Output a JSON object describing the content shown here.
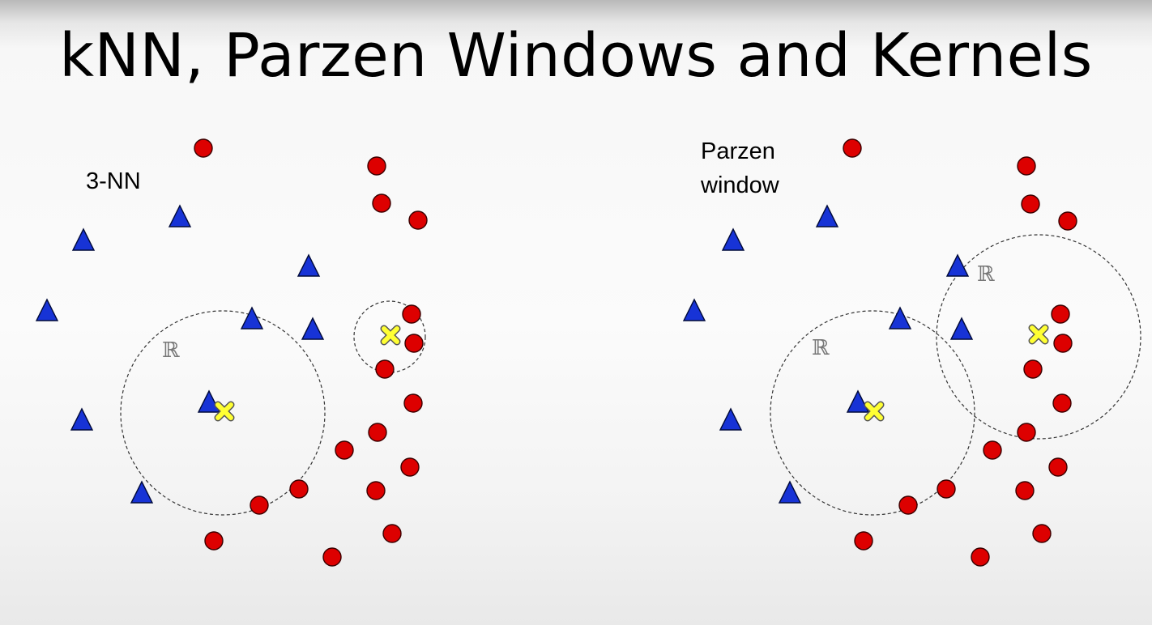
{
  "title": "kNN, Parzen Windows and Kernels",
  "panels": [
    {
      "id": "knn",
      "label": "3-NN",
      "region_symbol": "ℝ",
      "colors": {
        "circle": "#dd0000",
        "triangle": "#1733d6",
        "query": "#ffff33"
      }
    },
    {
      "id": "parzen",
      "label": "Parzen\nwindow",
      "region_symbol": "ℝ",
      "colors": {
        "circle": "#dd0000",
        "triangle": "#1733d6",
        "query": "#ffff33"
      }
    }
  ],
  "legend_semantics": {
    "red_circle": "class-circle",
    "blue_triangle": "class-triangle",
    "yellow_x": "query-point",
    "dashed_circle": "region"
  }
}
